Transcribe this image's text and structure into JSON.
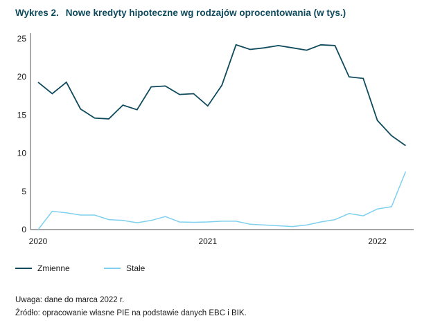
{
  "title_number": "Wykres 2.",
  "title_text": "Nowe kredyty hipoteczne wg rodzajów oprocentowania (w tys.)",
  "notes": {
    "remark": "Uwaga: dane do marca 2022 r.",
    "source": "Źródło: opracowanie własne PIE na podstawie danych EBC i BIK."
  },
  "chart_data": {
    "type": "line",
    "title": "Nowe kredyty hipoteczne wg rodzajów oprocentowania (w tys.)",
    "xlabel": "",
    "ylabel": "",
    "x": [
      "2020-01",
      "2020-02",
      "2020-03",
      "2020-04",
      "2020-05",
      "2020-06",
      "2020-07",
      "2020-08",
      "2020-09",
      "2020-10",
      "2020-11",
      "2020-12",
      "2021-01",
      "2021-02",
      "2021-03",
      "2021-04",
      "2021-05",
      "2021-06",
      "2021-07",
      "2021-08",
      "2021-09",
      "2021-10",
      "2021-11",
      "2021-12",
      "2022-01",
      "2022-02",
      "2022-03"
    ],
    "x_tick_labels": [
      "2020",
      "2021",
      "2022"
    ],
    "y_ticks": [
      "0",
      "5",
      "10",
      "15",
      "20",
      "25"
    ],
    "ylim": [
      0,
      25
    ],
    "grid": false,
    "legend_position": "bottom-left",
    "series": [
      {
        "name": "Zmienne",
        "color": "#0e4a5c",
        "values": [
          19.3,
          17.8,
          19.3,
          15.8,
          14.6,
          14.5,
          16.3,
          15.7,
          18.7,
          18.8,
          17.7,
          17.8,
          16.2,
          18.9,
          24.2,
          23.6,
          23.8,
          24.1,
          23.8,
          23.5,
          24.2,
          24.1,
          20.0,
          19.8,
          14.3,
          12.3,
          11.0
        ]
      },
      {
        "name": "Stałe",
        "color": "#7fd0ee",
        "values": [
          0,
          2.4,
          2.2,
          1.9,
          1.9,
          1.3,
          1.2,
          0.9,
          1.2,
          1.7,
          1.0,
          0.95,
          1.0,
          1.1,
          1.1,
          0.7,
          0.6,
          0.5,
          0.4,
          0.6,
          1.0,
          1.3,
          2.1,
          1.8,
          2.7,
          3.0,
          7.6
        ]
      }
    ]
  }
}
